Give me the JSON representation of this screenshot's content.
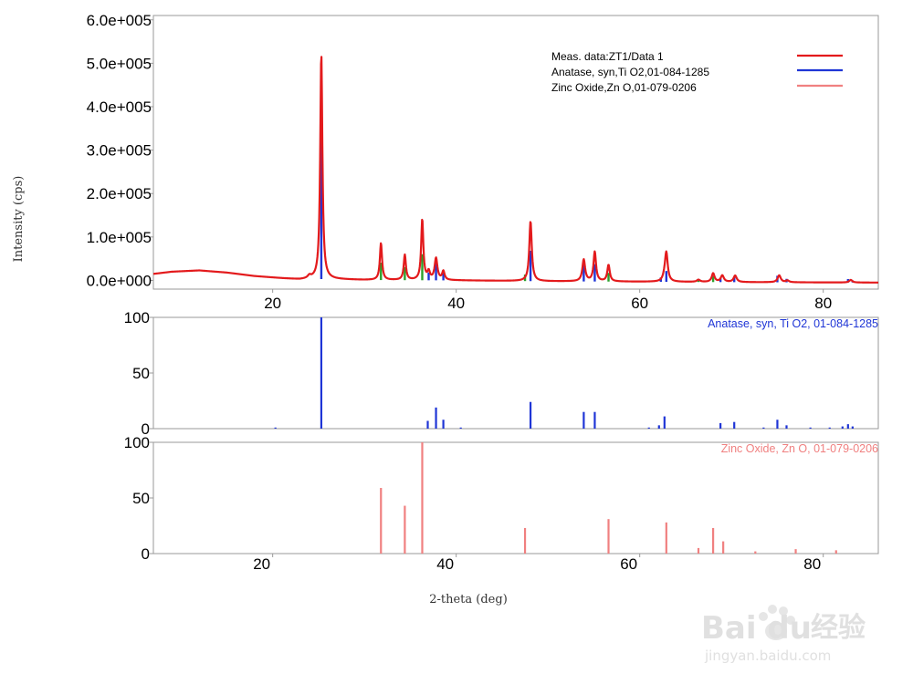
{
  "chart_data": [
    {
      "type": "line",
      "panel": "measured",
      "xlim": [
        7,
        86
      ],
      "ylim": [
        -20000,
        610000
      ],
      "ylabel": "Intensity (cps)",
      "y_ticks": [
        {
          "value": 0,
          "label": "0.0e+000"
        },
        {
          "value": 100000,
          "label": "1.0e+005"
        },
        {
          "value": 200000,
          "label": "2.0e+005"
        },
        {
          "value": 300000,
          "label": "3.0e+005"
        },
        {
          "value": 400000,
          "label": "4.0e+005"
        },
        {
          "value": 500000,
          "label": "5.0e+005"
        },
        {
          "value": 600000,
          "label": "6.0e+005"
        }
      ],
      "x_ticks": [
        {
          "value": 20,
          "label": "20"
        },
        {
          "value": 40,
          "label": "40"
        },
        {
          "value": 60,
          "label": "60"
        },
        {
          "value": 80,
          "label": "80"
        }
      ],
      "legend": [
        {
          "label": "Meas. data:ZT1/Data 1",
          "color": "#e31a1c"
        },
        {
          "label": "Anatase, syn,Ti O2,01-084-1285",
          "color": "#1f35d6"
        },
        {
          "label": "Zinc Oxide,Zn O,01-079-0206",
          "color": "#f08080"
        }
      ],
      "background": [
        [
          7,
          15000
        ],
        [
          9,
          20000
        ],
        [
          12,
          23000
        ],
        [
          15,
          18000
        ],
        [
          18,
          10000
        ],
        [
          21,
          5000
        ],
        [
          23,
          2000
        ],
        [
          24,
          3000
        ],
        [
          26,
          3000
        ],
        [
          30,
          1000
        ],
        [
          40,
          0
        ],
        [
          50,
          -2000
        ],
        [
          60,
          -3000
        ],
        [
          70,
          -4000
        ],
        [
          86,
          -5000
        ]
      ],
      "peaks": [
        {
          "x": 24.0,
          "h": 6000,
          "w": 0.2
        },
        {
          "x": 25.3,
          "h": 520000,
          "w": 0.14
        },
        {
          "x": 31.8,
          "h": 85000,
          "w": 0.14
        },
        {
          "x": 34.4,
          "h": 58000,
          "w": 0.14
        },
        {
          "x": 36.3,
          "h": 140000,
          "w": 0.14
        },
        {
          "x": 37.0,
          "h": 18000,
          "w": 0.16
        },
        {
          "x": 37.8,
          "h": 50000,
          "w": 0.18
        },
        {
          "x": 38.6,
          "h": 20000,
          "w": 0.16
        },
        {
          "x": 48.1,
          "h": 138000,
          "w": 0.16
        },
        {
          "x": 53.9,
          "h": 50000,
          "w": 0.18
        },
        {
          "x": 55.1,
          "h": 68000,
          "w": 0.16
        },
        {
          "x": 56.6,
          "h": 38000,
          "w": 0.16
        },
        {
          "x": 62.7,
          "h": 8000,
          "w": 0.2
        },
        {
          "x": 62.9,
          "h": 66000,
          "w": 0.18
        },
        {
          "x": 66.4,
          "h": 5000,
          "w": 0.2
        },
        {
          "x": 68.0,
          "h": 20000,
          "w": 0.18
        },
        {
          "x": 69.0,
          "h": 15000,
          "w": 0.2
        },
        {
          "x": 70.4,
          "h": 15000,
          "w": 0.2
        },
        {
          "x": 75.2,
          "h": 16000,
          "w": 0.2
        },
        {
          "x": 76.1,
          "h": 4000,
          "w": 0.2
        },
        {
          "x": 83.0,
          "h": 6000,
          "w": 0.2
        }
      ],
      "phase_markers": [
        {
          "x": 25.3,
          "h": 360000,
          "color": "#1f35d6"
        },
        {
          "x": 31.8,
          "h": 40000,
          "color": "#2ca02c"
        },
        {
          "x": 34.4,
          "h": 30000,
          "color": "#2ca02c"
        },
        {
          "x": 36.3,
          "h": 60000,
          "color": "#2ca02c"
        },
        {
          "x": 37.0,
          "h": 18000,
          "color": "#1f35d6"
        },
        {
          "x": 37.8,
          "h": 48000,
          "color": "#1f35d6"
        },
        {
          "x": 38.6,
          "h": 20000,
          "color": "#1f35d6"
        },
        {
          "x": 47.5,
          "h": 15000,
          "color": "#2ca02c"
        },
        {
          "x": 48.1,
          "h": 70000,
          "color": "#1f35d6"
        },
        {
          "x": 53.9,
          "h": 40000,
          "color": "#1f35d6"
        },
        {
          "x": 55.1,
          "h": 40000,
          "color": "#1f35d6"
        },
        {
          "x": 56.6,
          "h": 20000,
          "color": "#2ca02c"
        },
        {
          "x": 62.3,
          "h": 10000,
          "color": "#1f35d6"
        },
        {
          "x": 62.9,
          "h": 25000,
          "color": "#1f35d6"
        },
        {
          "x": 66.4,
          "h": 5000,
          "color": "#2ca02c"
        },
        {
          "x": 68.0,
          "h": 14000,
          "color": "#2ca02c"
        },
        {
          "x": 68.8,
          "h": 10000,
          "color": "#1f35d6"
        },
        {
          "x": 70.3,
          "h": 12000,
          "color": "#1f35d6"
        },
        {
          "x": 75.0,
          "h": 15000,
          "color": "#1f35d6"
        },
        {
          "x": 76.0,
          "h": 8000,
          "color": "#1f35d6"
        },
        {
          "x": 82.7,
          "h": 8000,
          "color": "#1f35d6"
        },
        {
          "x": 83.2,
          "h": 5000,
          "color": "#1f35d6"
        }
      ]
    },
    {
      "type": "bar",
      "panel": "reference",
      "label": "Anatase, syn, Ti O2, 01-084-1285",
      "color": "#1f35d6",
      "xlim": [
        7,
        86
      ],
      "ylim": [
        0,
        100
      ],
      "y_ticks": [
        {
          "value": 0,
          "label": "0"
        },
        {
          "value": 50,
          "label": "50"
        },
        {
          "value": 100,
          "label": "100"
        }
      ],
      "x": [
        20.3,
        25.3,
        36.9,
        37.8,
        38.6,
        40.5,
        48.1,
        53.9,
        55.1,
        61.0,
        62.1,
        62.7,
        68.8,
        70.3,
        73.5,
        75.0,
        76.0,
        78.6,
        80.7,
        82.1,
        82.7,
        83.2
      ],
      "values": [
        1,
        100,
        7,
        19,
        8,
        1,
        24,
        15,
        15,
        1,
        3,
        11,
        5,
        6,
        1,
        8,
        3,
        1,
        1,
        2,
        4,
        2
      ]
    },
    {
      "type": "bar",
      "panel": "reference",
      "label": "Zinc Oxide, Zn O, 01-079-0206",
      "color": "#f08080",
      "xlim": [
        7,
        86
      ],
      "ylim": [
        0,
        100
      ],
      "y_ticks": [
        {
          "value": 0,
          "label": "0"
        },
        {
          "value": 50,
          "label": "50"
        },
        {
          "value": 100,
          "label": "100"
        }
      ],
      "x_ticks": [
        {
          "value": 20,
          "label": "20"
        },
        {
          "value": 40,
          "label": "40"
        },
        {
          "value": 60,
          "label": "60"
        },
        {
          "value": 80,
          "label": "80"
        }
      ],
      "xlabel": "2-theta (deg)",
      "x": [
        31.8,
        34.4,
        36.3,
        47.5,
        56.6,
        62.9,
        66.4,
        68.0,
        69.1,
        72.6,
        77.0,
        81.4
      ],
      "values": [
        59,
        43,
        100,
        23,
        31,
        28,
        5,
        23,
        11,
        2,
        4,
        3
      ]
    }
  ],
  "watermark": {
    "brand": "Bai du",
    "cn": "经验",
    "url": "jingyan.baidu.com"
  }
}
